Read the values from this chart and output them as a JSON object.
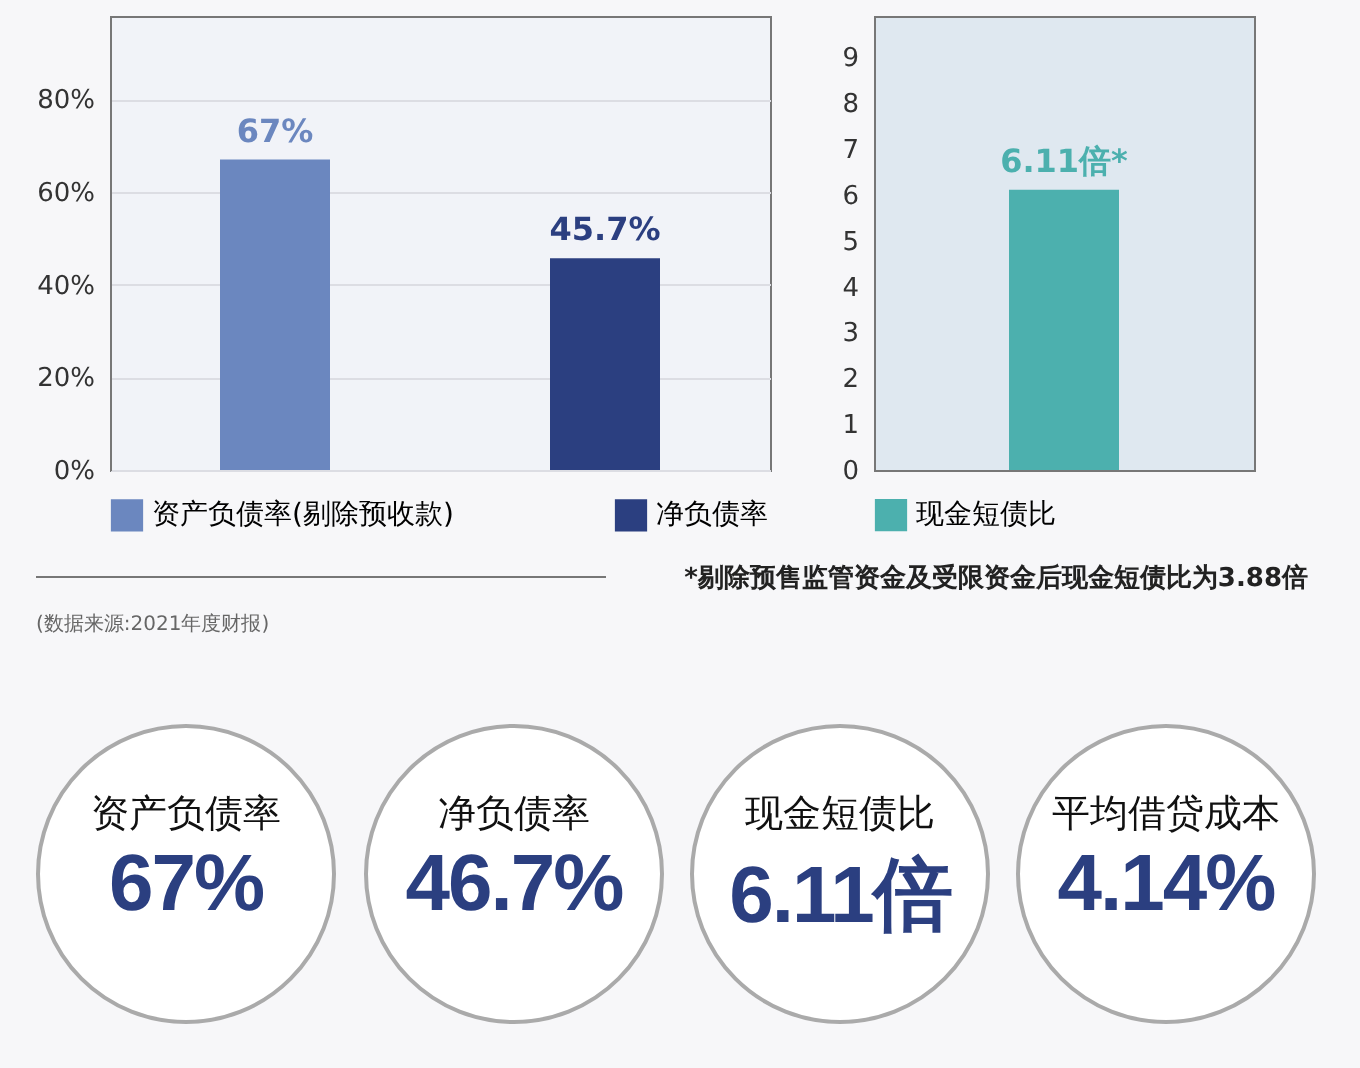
{
  "chart_data": [
    {
      "type": "bar",
      "categories": [
        null,
        null
      ],
      "series": [
        {
          "name": "资产负债率(剔除预收款)",
          "color": "#6b87bf",
          "values": [
            67,
            null
          ],
          "value_labels": [
            "67%",
            null
          ]
        },
        {
          "name": "净负债率",
          "color": "#2b3f80",
          "values": [
            null,
            45.7
          ],
          "value_labels": [
            null,
            "45.7%"
          ]
        }
      ],
      "ylim": [
        0,
        98
      ],
      "yticks": [
        {
          "value": 0,
          "label": "0%"
        },
        {
          "value": 20,
          "label": "20%"
        },
        {
          "value": 40,
          "label": "40%"
        },
        {
          "value": 60,
          "label": "60%"
        },
        {
          "value": 80,
          "label": "80%"
        }
      ],
      "grid": "y",
      "legend": "bottom",
      "annotations": [
        "(数据来源:2021年度财报)"
      ]
    },
    {
      "type": "bar",
      "categories": [
        null
      ],
      "series": [
        {
          "name": "现金短债比",
          "color": "#4cb0ae",
          "values": [
            6.11
          ],
          "value_labels": [
            "6.11倍*"
          ]
        }
      ],
      "ylim": [
        0,
        9.9
      ],
      "yticks": [
        0,
        1,
        2,
        3,
        4,
        5,
        6,
        7,
        8,
        9
      ],
      "legend": "bottom",
      "annotations": [
        "*剔除预售监管资金及受限资金后现金短债比为3.88倍"
      ]
    },
    {
      "type": "other",
      "annotations": [
        "资产负债率",
        "67%",
        "净负债率",
        "46.7%",
        "现金短债比",
        "6.11倍",
        "平均借贷成本",
        "4.14%"
      ]
    }
  ]
}
